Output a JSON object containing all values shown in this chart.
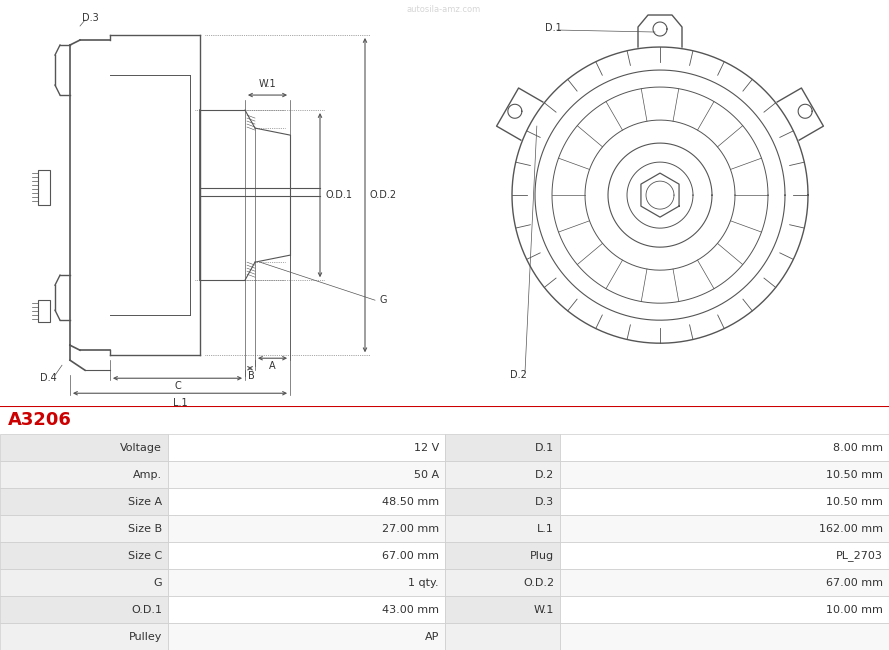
{
  "title": "A3206",
  "title_color": "#cc0000",
  "bg_color": "#ffffff",
  "table": {
    "left_labels": [
      "Voltage",
      "Amp.",
      "Size A",
      "Size B",
      "Size C",
      "G",
      "O.D.1",
      "Pulley"
    ],
    "left_values": [
      "12 V",
      "50 A",
      "48.50 mm",
      "27.00 mm",
      "67.00 mm",
      "1 qty.",
      "43.00 mm",
      "AP"
    ],
    "right_labels": [
      "D.1",
      "D.2",
      "D.3",
      "L.1",
      "Plug",
      "O.D.2",
      "W.1",
      ""
    ],
    "right_values": [
      "8.00 mm",
      "10.50 mm",
      "10.50 mm",
      "162.00 mm",
      "PL_2703",
      "67.00 mm",
      "10.00 mm",
      ""
    ],
    "row_colors": [
      "#e8e8e8",
      "#f0f0f0"
    ],
    "header_line_color": "#cc0000",
    "border_color": "#cccccc"
  },
  "line_color": "#555555",
  "dim_color": "#555555"
}
